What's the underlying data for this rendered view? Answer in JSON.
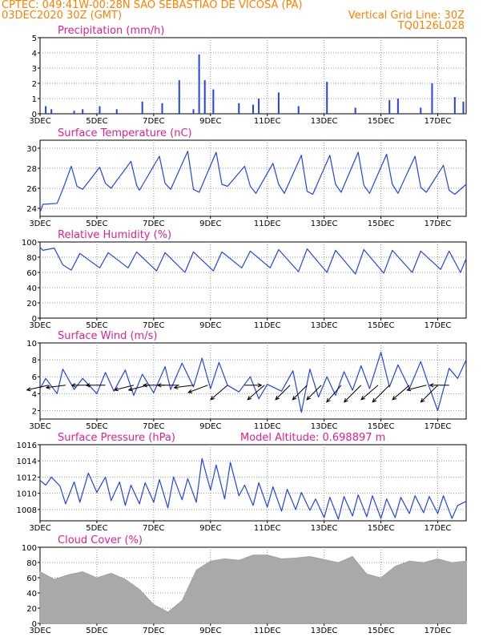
{
  "header": {
    "line1": "CPTEC:   049:41W-00:28N   SAO SEBASTIAO DE VICOSA (PA)",
    "line2": "03DEC2020 30Z (GMT)",
    "grid_note": "Vertical Grid Line: 30Z",
    "code": "TQ0126L028"
  },
  "colors": {
    "header": "#ff8000",
    "titles": "#e0208f",
    "series": "#2244ee",
    "cloud": "#a9a9a9",
    "arrows": "#000000",
    "grid": "#999999"
  },
  "x_ticks": [
    "3DEC",
    "5DEC",
    "7DEC",
    "9DEC",
    "11DEC",
    "13DEC",
    "15DEC",
    "17DEC"
  ],
  "chart_data": [
    {
      "id": "precip",
      "type": "bar",
      "title": "Precipitation (mm/h)",
      "ylim": [
        0,
        5
      ],
      "yticks": [
        0,
        1,
        2,
        3,
        4,
        5
      ],
      "days": [
        3.2,
        3.4,
        4.2,
        4.5,
        5.1,
        5.7,
        6.6,
        7.3,
        7.9,
        8.4,
        8.6,
        8.8,
        9.1,
        10.0,
        10.5,
        10.7,
        11.4,
        12.1,
        13.1,
        14.1,
        15.3,
        15.6,
        16.4,
        16.8,
        17.6,
        17.9
      ],
      "values": [
        0.5,
        0.3,
        0.2,
        0.3,
        0.5,
        0.3,
        0.8,
        0.7,
        2.2,
        0.3,
        3.9,
        2.2,
        1.6,
        0.7,
        0.6,
        1.0,
        1.4,
        0.5,
        2.1,
        0.4,
        0.9,
        1.0,
        0.4,
        2.0,
        1.1,
        0.8
      ]
    },
    {
      "id": "temp",
      "type": "line",
      "title": "Surface Temperature (nC)",
      "ylim": [
        23.2,
        30.8
      ],
      "yticks": [
        24,
        26,
        28,
        30
      ],
      "days": [
        3.0,
        3.1,
        3.6,
        3.8,
        4.1,
        4.3,
        4.5,
        5.1,
        5.3,
        5.5,
        6.2,
        6.4,
        6.5,
        7.2,
        7.4,
        7.6,
        8.2,
        8.4,
        8.6,
        9.2,
        9.4,
        9.6,
        10.2,
        10.4,
        10.6,
        11.2,
        11.4,
        11.6,
        12.2,
        12.4,
        12.6,
        13.2,
        13.4,
        13.6,
        14.2,
        14.4,
        14.6,
        15.2,
        15.4,
        15.6,
        16.2,
        16.4,
        16.6,
        17.2,
        17.4,
        17.6,
        18.0
      ],
      "values": [
        23.6,
        24.4,
        24.5,
        25.9,
        28.2,
        26.2,
        25.9,
        28.1,
        26.5,
        26.0,
        28.7,
        26.3,
        25.8,
        29.2,
        26.5,
        25.9,
        29.7,
        25.9,
        25.6,
        29.6,
        26.4,
        26.2,
        28.2,
        26.2,
        25.5,
        28.5,
        26.4,
        25.5,
        29.3,
        25.7,
        25.4,
        29.3,
        26.4,
        25.6,
        29.6,
        26.3,
        25.5,
        29.4,
        26.4,
        25.5,
        29.2,
        26.1,
        25.6,
        28.3,
        25.8,
        25.4,
        26.4
      ]
    },
    {
      "id": "rh",
      "type": "line",
      "title": "Relative Humidity (%)",
      "ylim": [
        0,
        100
      ],
      "yticks": [
        0,
        20,
        40,
        60,
        80,
        100
      ],
      "days": [
        3.0,
        3.1,
        3.5,
        3.8,
        4.1,
        4.4,
        5.1,
        5.4,
        6.1,
        6.4,
        7.1,
        7.4,
        8.1,
        8.4,
        9.1,
        9.4,
        10.1,
        10.4,
        11.1,
        11.4,
        12.1,
        12.4,
        13.1,
        13.4,
        14.1,
        14.4,
        15.1,
        15.4,
        16.1,
        16.4,
        17.1,
        17.4,
        17.8,
        18.0
      ],
      "values": [
        93,
        89,
        92,
        70,
        63,
        85,
        66,
        86,
        66,
        87,
        62,
        86,
        60,
        87,
        62,
        87,
        66,
        88,
        66,
        90,
        61,
        91,
        60,
        89,
        58,
        90,
        59,
        89,
        60,
        88,
        64,
        88,
        60,
        78
      ]
    },
    {
      "id": "wind",
      "type": "line",
      "title": "Surface Wind (m/s)",
      "ylim": [
        1,
        10
      ],
      "yticks": [
        2,
        4,
        6,
        8,
        10
      ],
      "days": [
        3.0,
        3.2,
        3.6,
        3.8,
        4.2,
        4.5,
        5.0,
        5.3,
        5.6,
        6.0,
        6.3,
        6.6,
        7.0,
        7.4,
        7.6,
        8.0,
        8.4,
        8.7,
        9.0,
        9.3,
        9.6,
        10.0,
        10.4,
        10.7,
        11.0,
        11.5,
        11.9,
        12.2,
        12.5,
        12.8,
        13.1,
        13.4,
        13.7,
        14.0,
        14.3,
        14.6,
        15.0,
        15.3,
        15.6,
        16.0,
        16.4,
        16.7,
        17.0,
        17.4,
        17.7,
        18.0
      ],
      "values": [
        4.6,
        5.8,
        4.0,
        6.9,
        4.5,
        5.8,
        4.0,
        6.5,
        4.3,
        6.8,
        3.8,
        6.3,
        4.1,
        7.2,
        4.5,
        7.6,
        4.8,
        8.2,
        4.6,
        7.7,
        5.0,
        4.2,
        6.0,
        3.4,
        5.1,
        4.3,
        6.7,
        1.8,
        6.9,
        3.6,
        6.0,
        3.8,
        6.6,
        4.4,
        7.3,
        4.6,
        8.9,
        4.8,
        7.4,
        4.6,
        7.8,
        4.8,
        2.0,
        7.0,
        5.8,
        8.0
      ],
      "vectors": {
        "days": [
          3.3,
          3.9,
          4.8,
          5.3,
          6.3,
          6.8,
          7.4,
          7.9,
          8.4,
          8.9,
          9.6,
          10.2,
          10.9,
          11.8,
          12.4,
          12.9,
          13.6,
          14.3,
          14.9,
          15.3,
          16.0,
          16.6,
          17.0,
          17.4
        ],
        "u": [
          -4.5,
          -4.0,
          -4.0,
          -4.0,
          -4.0,
          -4.0,
          -4.5,
          -4.5,
          -4.0,
          -4.0,
          -3.5,
          3.5,
          -3.5,
          -3.0,
          -3.0,
          -3.0,
          -3.0,
          -3.5,
          -3.5,
          -3.5,
          -3.5,
          -4.0,
          -3.5,
          -4.0
        ],
        "v": [
          -1.0,
          -0.5,
          0.0,
          0.0,
          -1.0,
          -1.0,
          0.0,
          0.0,
          -0.5,
          -1.5,
          -3.0,
          0.0,
          -3.0,
          -3.0,
          -3.0,
          -3.0,
          -3.5,
          -3.5,
          -3.0,
          -3.5,
          -3.0,
          -1.0,
          -3.5,
          0.0
        ]
      }
    },
    {
      "id": "pres",
      "type": "line",
      "title": "Surface Pressure (hPa)",
      "note": "Model Altitude: 0.698897 m",
      "ylim": [
        1006.6,
        1016
      ],
      "yticks": [
        1008,
        1010,
        1012,
        1014,
        1016
      ],
      "days": [
        3.0,
        3.2,
        3.4,
        3.7,
        3.9,
        4.2,
        4.4,
        4.7,
        5.0,
        5.3,
        5.5,
        5.8,
        6.0,
        6.2,
        6.5,
        6.7,
        7.0,
        7.2,
        7.5,
        7.7,
        8.0,
        8.2,
        8.5,
        8.7,
        9.0,
        9.2,
        9.5,
        9.7,
        10.0,
        10.2,
        10.5,
        10.7,
        11.0,
        11.2,
        11.5,
        11.7,
        12.0,
        12.2,
        12.5,
        12.7,
        13.0,
        13.2,
        13.5,
        13.7,
        14.0,
        14.2,
        14.5,
        14.7,
        15.0,
        15.2,
        15.5,
        15.7,
        16.0,
        16.2,
        16.5,
        16.7,
        17.0,
        17.2,
        17.5,
        17.7,
        18.0
      ],
      "values": [
        1011.6,
        1011.0,
        1012.0,
        1010.9,
        1008.7,
        1011.4,
        1008.9,
        1012.5,
        1010.1,
        1012.0,
        1009.1,
        1011.4,
        1008.5,
        1011.0,
        1008.7,
        1011.3,
        1008.9,
        1011.7,
        1008.2,
        1012.0,
        1009.2,
        1011.8,
        1008.9,
        1014.3,
        1010.4,
        1013.5,
        1009.3,
        1013.8,
        1009.7,
        1011.0,
        1008.5,
        1011.3,
        1008.3,
        1010.8,
        1007.8,
        1010.5,
        1008.0,
        1010.1,
        1007.9,
        1009.3,
        1007.0,
        1009.5,
        1006.8,
        1009.6,
        1007.2,
        1009.8,
        1007.1,
        1009.7,
        1006.9,
        1009.3,
        1007.0,
        1009.5,
        1007.5,
        1009.7,
        1007.6,
        1009.6,
        1007.5,
        1009.7,
        1006.9,
        1008.5,
        1009.0
      ]
    },
    {
      "id": "cloud",
      "type": "area",
      "title": "Cloud Cover (%)",
      "ylim": [
        0,
        100
      ],
      "yticks": [
        0,
        20,
        40,
        60,
        80,
        100
      ],
      "days": [
        3.0,
        3.5,
        4.0,
        4.5,
        5.0,
        5.5,
        6.0,
        6.5,
        7.0,
        7.5,
        8.0,
        8.5,
        9.0,
        9.5,
        10.0,
        10.5,
        11.0,
        11.5,
        12.0,
        12.5,
        13.0,
        13.5,
        14.0,
        14.5,
        15.0,
        15.5,
        16.0,
        16.5,
        17.0,
        17.5,
        18.0
      ],
      "values": [
        68,
        58,
        64,
        68,
        60,
        66,
        58,
        45,
        25,
        15,
        30,
        70,
        82,
        85,
        83,
        90,
        90,
        85,
        86,
        88,
        84,
        80,
        88,
        65,
        60,
        75,
        82,
        80,
        85,
        80,
        82
      ]
    }
  ]
}
